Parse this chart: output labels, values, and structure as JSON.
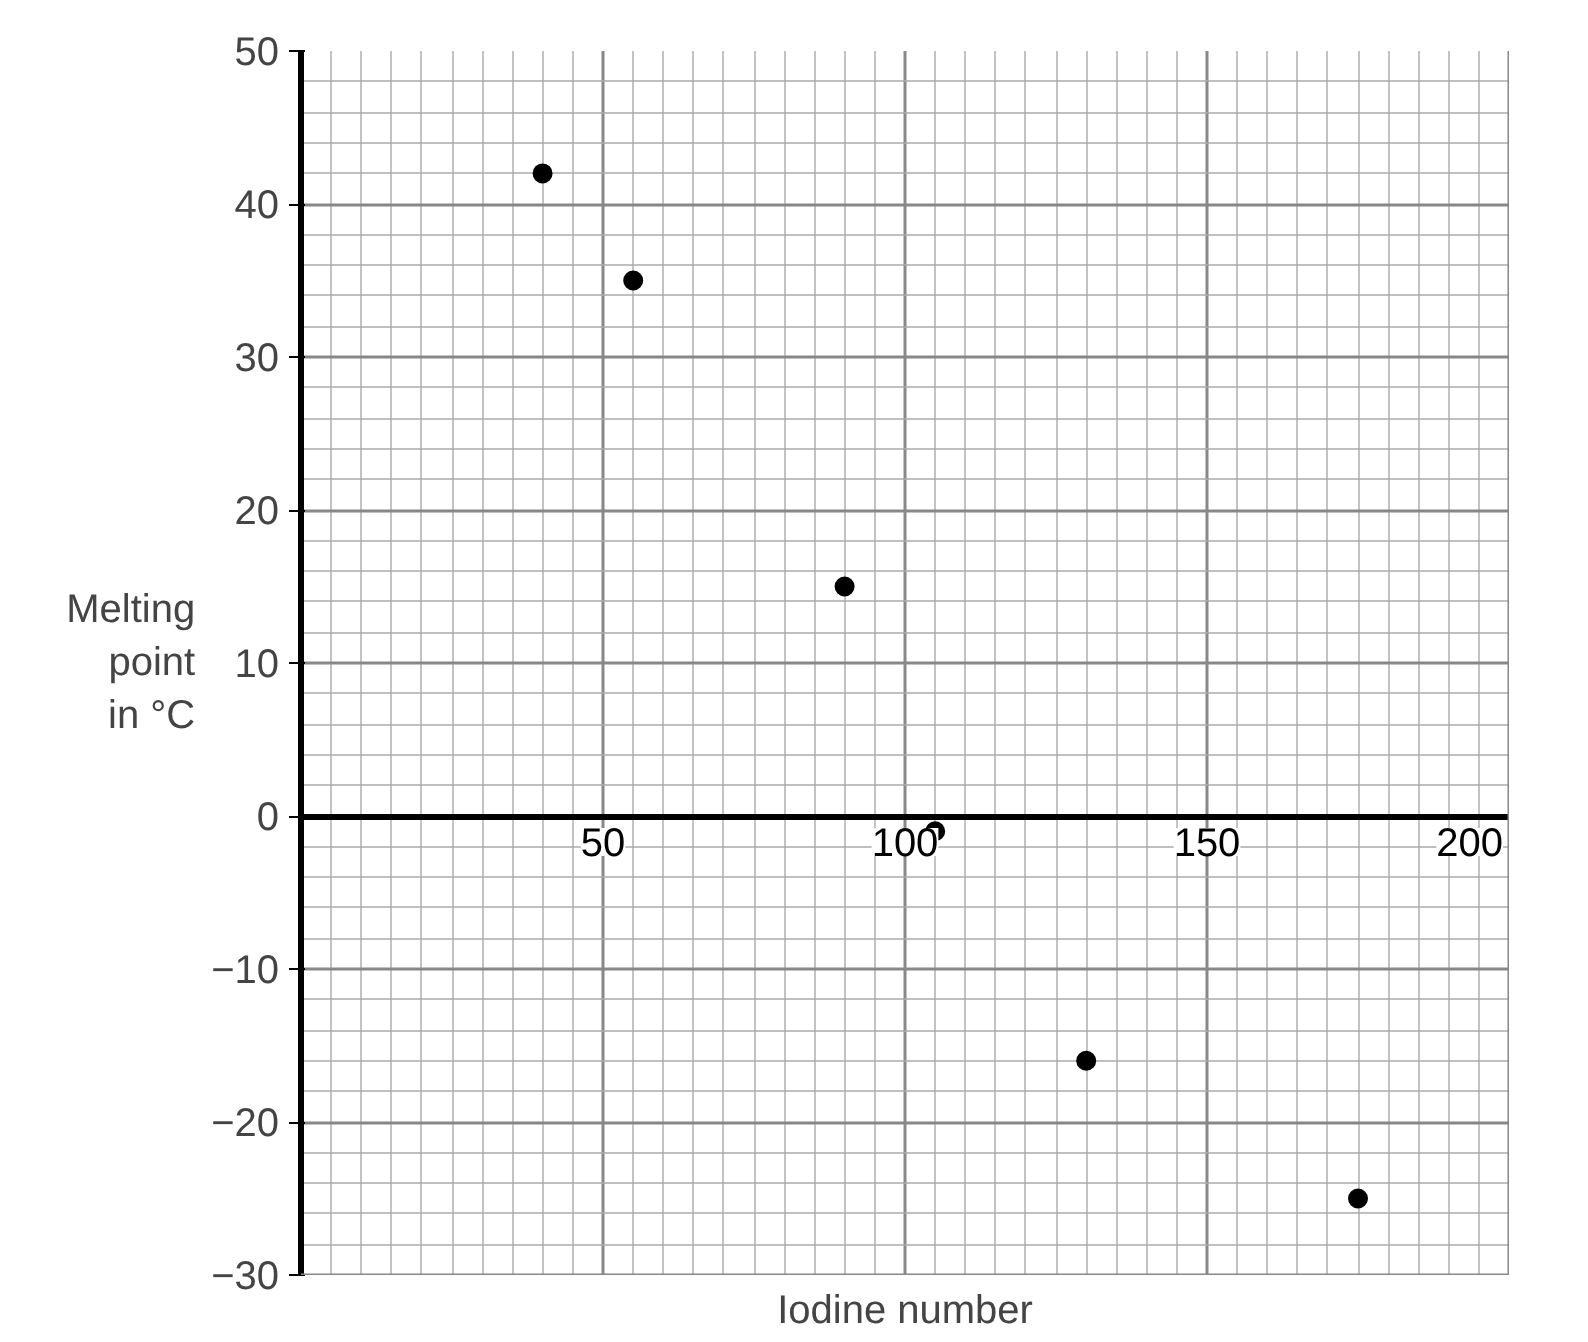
{
  "chart_data": {
    "type": "scatter",
    "xlabel": "Iodine number",
    "ylabel": "Melting\npoint\nin °C",
    "x": [
      40,
      55,
      90,
      105,
      130,
      175
    ],
    "series": [
      {
        "color": "#000000",
        "values": [
          42,
          35,
          15,
          -1,
          -16,
          -25
        ]
      }
    ],
    "xlim": [
      0,
      200
    ],
    "ylim": [
      -30,
      50
    ],
    "xticks": [
      {
        "value": 0,
        "label": null
      },
      50,
      100,
      150,
      200
    ],
    "yticks": [
      -30,
      -20,
      -10,
      0,
      10,
      20,
      30,
      40,
      50
    ],
    "grid": true,
    "marker": "circle"
  }
}
